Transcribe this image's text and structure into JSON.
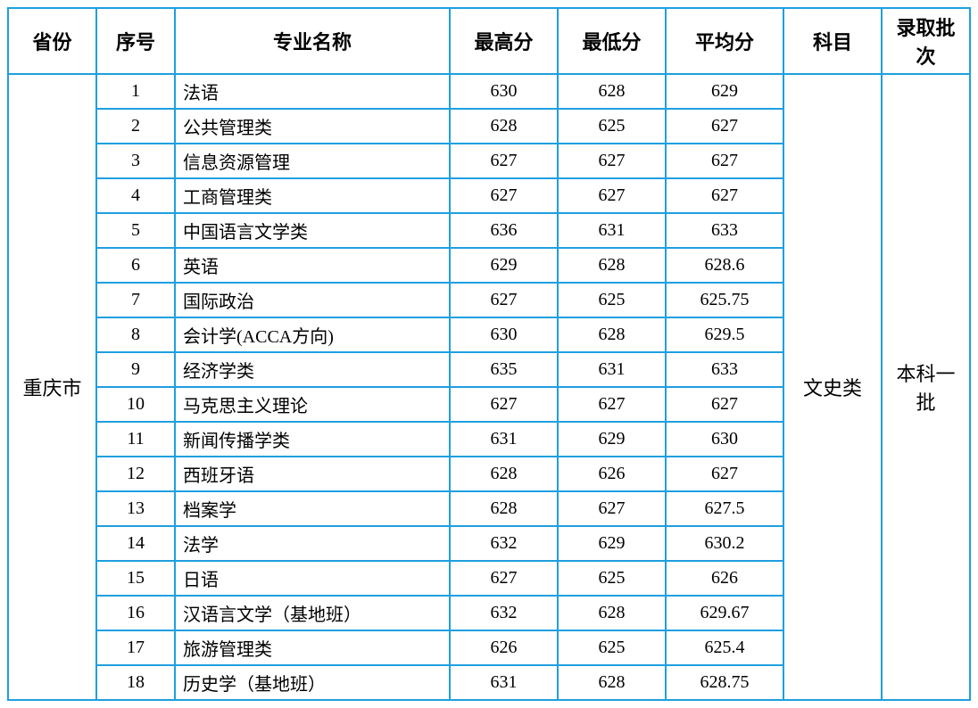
{
  "table": {
    "border_color": "#1e9fe0",
    "background_color": "#ffffff",
    "text_color": "#000000",
    "header_fontsize": 22,
    "cell_fontsize": 20,
    "columns": {
      "province": "省份",
      "seq": "序号",
      "major": "专业名称",
      "max": "最高分",
      "min": "最低分",
      "avg": "平均分",
      "subject": "科目",
      "batch": "录取批次"
    },
    "province": "重庆市",
    "subject": "文史类",
    "batch": "本科一批",
    "rows": [
      {
        "seq": "1",
        "major": "法语",
        "max": "630",
        "min": "628",
        "avg": "629"
      },
      {
        "seq": "2",
        "major": "公共管理类",
        "max": "628",
        "min": "625",
        "avg": "627"
      },
      {
        "seq": "3",
        "major": "信息资源管理",
        "max": "627",
        "min": "627",
        "avg": "627"
      },
      {
        "seq": "4",
        "major": "工商管理类",
        "max": "627",
        "min": "627",
        "avg": "627"
      },
      {
        "seq": "5",
        "major": "中国语言文学类",
        "max": "636",
        "min": "631",
        "avg": "633"
      },
      {
        "seq": "6",
        "major": "英语",
        "max": "629",
        "min": "628",
        "avg": "628.6"
      },
      {
        "seq": "7",
        "major": "国际政治",
        "max": "627",
        "min": "625",
        "avg": "625.75"
      },
      {
        "seq": "8",
        "major": "会计学(ACCA方向)",
        "max": "630",
        "min": "628",
        "avg": "629.5"
      },
      {
        "seq": "9",
        "major": "经济学类",
        "max": "635",
        "min": "631",
        "avg": "633"
      },
      {
        "seq": "10",
        "major": "马克思主义理论",
        "max": "627",
        "min": "627",
        "avg": "627"
      },
      {
        "seq": "11",
        "major": "新闻传播学类",
        "max": "631",
        "min": "629",
        "avg": "630"
      },
      {
        "seq": "12",
        "major": "西班牙语",
        "max": "628",
        "min": "626",
        "avg": "627"
      },
      {
        "seq": "13",
        "major": "档案学",
        "max": "628",
        "min": "627",
        "avg": "627.5"
      },
      {
        "seq": "14",
        "major": "法学",
        "max": "632",
        "min": "629",
        "avg": "630.2"
      },
      {
        "seq": "15",
        "major": "日语",
        "max": "627",
        "min": "625",
        "avg": "626"
      },
      {
        "seq": "16",
        "major": "汉语言文学（基地班）",
        "max": "632",
        "min": "628",
        "avg": "629.67"
      },
      {
        "seq": "17",
        "major": "旅游管理类",
        "max": "626",
        "min": "625",
        "avg": "625.4"
      },
      {
        "seq": "18",
        "major": "历史学（基地班）",
        "max": "631",
        "min": "628",
        "avg": "628.75"
      }
    ]
  }
}
